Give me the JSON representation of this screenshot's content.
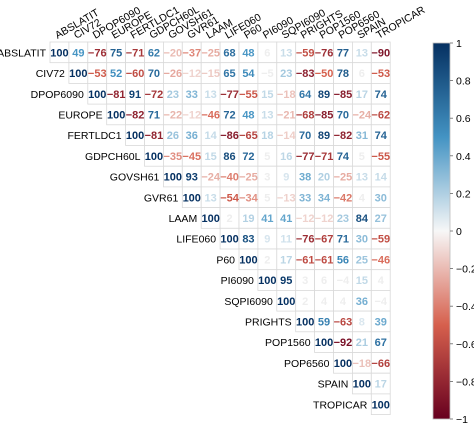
{
  "chart_data": {
    "type": "heatmap",
    "title": "",
    "variables": [
      "ABSLATIT",
      "CIV72",
      "DPOP6090",
      "EUROPE",
      "FERTLDC1",
      "GDPCH60L",
      "GOVSH61",
      "GVR61",
      "LAAM",
      "LIFE060",
      "P60",
      "PI6090",
      "SQPI6090",
      "PRIGHTS",
      "POP1560",
      "POP6560",
      "SPAIN",
      "TROPICAR"
    ],
    "matrix_type": "upper",
    "values_scaled_by": 100,
    "values": [
      [
        100,
        49,
        -76,
        75,
        -71,
        62,
        -20,
        -37,
        -25,
        68,
        48,
        6,
        13,
        -59,
        -76,
        77,
        13,
        -90
      ],
      [
        null,
        100,
        -53,
        52,
        -60,
        70,
        -26,
        -12,
        -15,
        65,
        54,
        -5,
        23,
        -83,
        -50,
        78,
        6,
        -53
      ],
      [
        null,
        null,
        100,
        -81,
        91,
        -72,
        23,
        33,
        13,
        -77,
        -55,
        15,
        -18,
        64,
        89,
        -85,
        17,
        74
      ],
      [
        null,
        null,
        null,
        100,
        -82,
        71,
        -22,
        -12,
        -46,
        72,
        48,
        13,
        -21,
        -68,
        -85,
        70,
        -24,
        -62
      ],
      [
        null,
        null,
        null,
        null,
        100,
        -81,
        26,
        36,
        14,
        -86,
        -65,
        18,
        -14,
        70,
        89,
        -82,
        31,
        74
      ],
      [
        null,
        null,
        null,
        null,
        null,
        100,
        -35,
        -45,
        15,
        86,
        72,
        5,
        16,
        -77,
        -71,
        74,
        5,
        -55
      ],
      [
        null,
        null,
        null,
        null,
        null,
        null,
        100,
        93,
        -24,
        -40,
        -25,
        3,
        9,
        38,
        20,
        -25,
        13,
        14
      ],
      [
        null,
        null,
        null,
        null,
        null,
        null,
        null,
        100,
        13,
        -54,
        -34,
        5,
        -13,
        33,
        34,
        -42,
        4,
        30
      ],
      [
        null,
        null,
        null,
        null,
        null,
        null,
        null,
        null,
        100,
        2,
        19,
        41,
        41,
        -12,
        -12,
        23,
        84,
        27
      ],
      [
        null,
        null,
        null,
        null,
        null,
        null,
        null,
        null,
        null,
        100,
        83,
        9,
        11,
        -76,
        -67,
        71,
        30,
        -59
      ],
      [
        null,
        null,
        null,
        null,
        null,
        null,
        null,
        null,
        null,
        null,
        100,
        2,
        17,
        -61,
        -61,
        56,
        25,
        -46
      ],
      [
        null,
        null,
        null,
        null,
        null,
        null,
        null,
        null,
        null,
        null,
        null,
        100,
        95,
        3,
        6,
        -4,
        15,
        4
      ],
      [
        null,
        null,
        null,
        null,
        null,
        null,
        null,
        null,
        null,
        null,
        null,
        null,
        100,
        2,
        4,
        4,
        36,
        -4
      ],
      [
        null,
        null,
        null,
        null,
        null,
        null,
        null,
        null,
        null,
        null,
        null,
        null,
        null,
        100,
        59,
        -63,
        8,
        39
      ],
      [
        null,
        null,
        null,
        null,
        null,
        null,
        null,
        null,
        null,
        null,
        null,
        null,
        null,
        null,
        100,
        -92,
        21,
        67
      ],
      [
        null,
        null,
        null,
        null,
        null,
        null,
        null,
        null,
        null,
        null,
        null,
        null,
        null,
        null,
        null,
        100,
        -18,
        -66
      ],
      [
        null,
        null,
        null,
        null,
        null,
        null,
        null,
        null,
        null,
        null,
        null,
        null,
        null,
        null,
        null,
        null,
        100,
        17
      ],
      [
        null,
        null,
        null,
        null,
        null,
        null,
        null,
        null,
        null,
        null,
        null,
        null,
        null,
        null,
        null,
        null,
        null,
        100
      ]
    ],
    "colorbar": {
      "ticks": [
        "1",
        "0.8",
        "0.6",
        "0.4",
        "0.2",
        "0",
        "−0.2",
        "−0.4",
        "−0.6",
        "−0.8",
        "−1"
      ],
      "range": [
        -1,
        1
      ],
      "colors": {
        "neg_strong": "#67001f",
        "neg_mid": "#d6604d",
        "neutral": "#f7f7f7",
        "pos_mid": "#4393c3",
        "pos_strong": "#053061"
      }
    },
    "grid": true,
    "legend_position": "right"
  }
}
